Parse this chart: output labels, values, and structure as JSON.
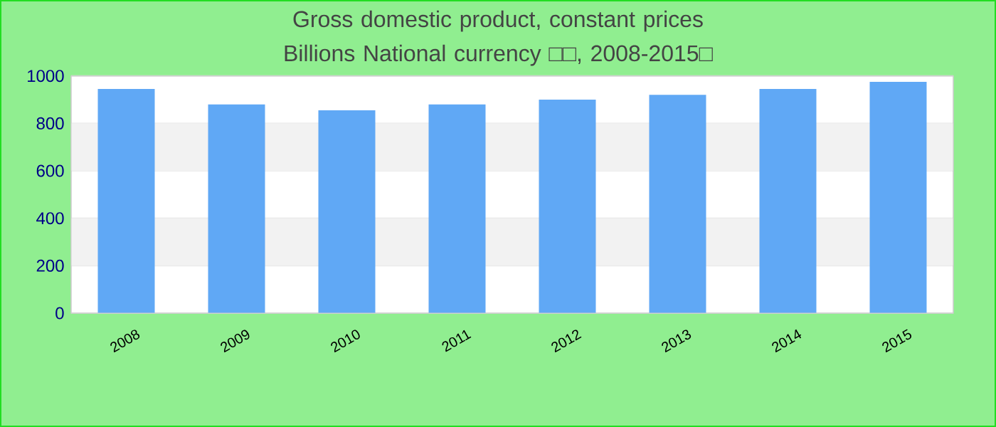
{
  "chart_data": {
    "type": "bar",
    "title": "Gross domestic product, constant prices Billions National currency □□, 2008-2015□",
    "categories": [
      "2008",
      "2009",
      "2010",
      "2011",
      "2012",
      "2013",
      "2014",
      "2015"
    ],
    "values": [
      945,
      880,
      855,
      880,
      900,
      920,
      945,
      975
    ],
    "color": "#60a8f5",
    "ylim": [
      0,
      1000
    ],
    "yticks": [
      0,
      200,
      400,
      600,
      800,
      1000
    ],
    "grid": "y"
  }
}
